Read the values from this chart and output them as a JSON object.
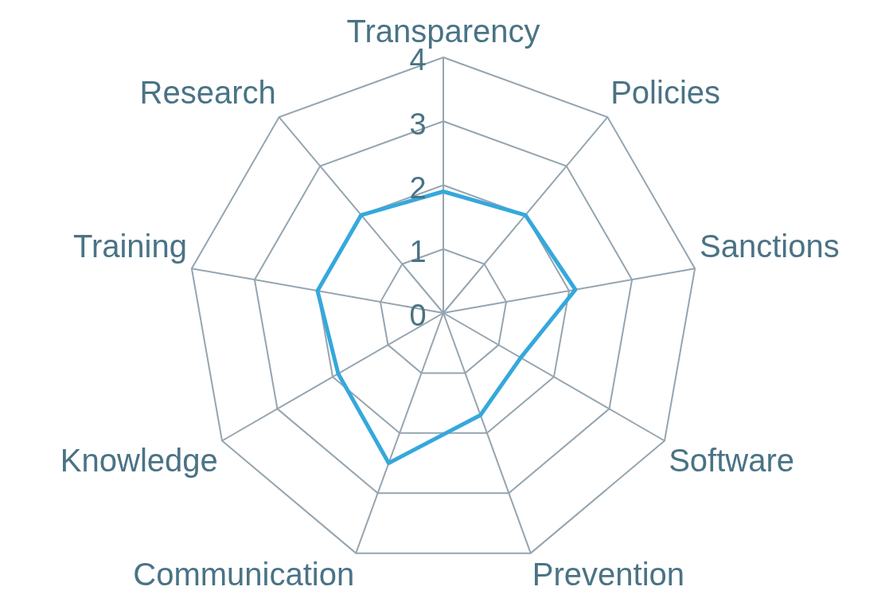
{
  "chart_data": {
    "type": "radar",
    "categories": [
      "Transparency",
      "Policies",
      "Sanctions",
      "Software",
      "Prevention",
      "Communication",
      "Knowledge",
      "Training",
      "Research"
    ],
    "series": [
      {
        "color": "#35a8dc",
        "values": [
          1.9,
          2.0,
          2.1,
          1.4,
          1.7,
          2.5,
          1.9,
          2.0,
          2.0
        ]
      }
    ],
    "ylim": [
      0,
      4
    ],
    "yticks": [
      0,
      1,
      2,
      3,
      4
    ],
    "grid": true,
    "legend": false,
    "marker": "none",
    "line_style": "solid"
  }
}
